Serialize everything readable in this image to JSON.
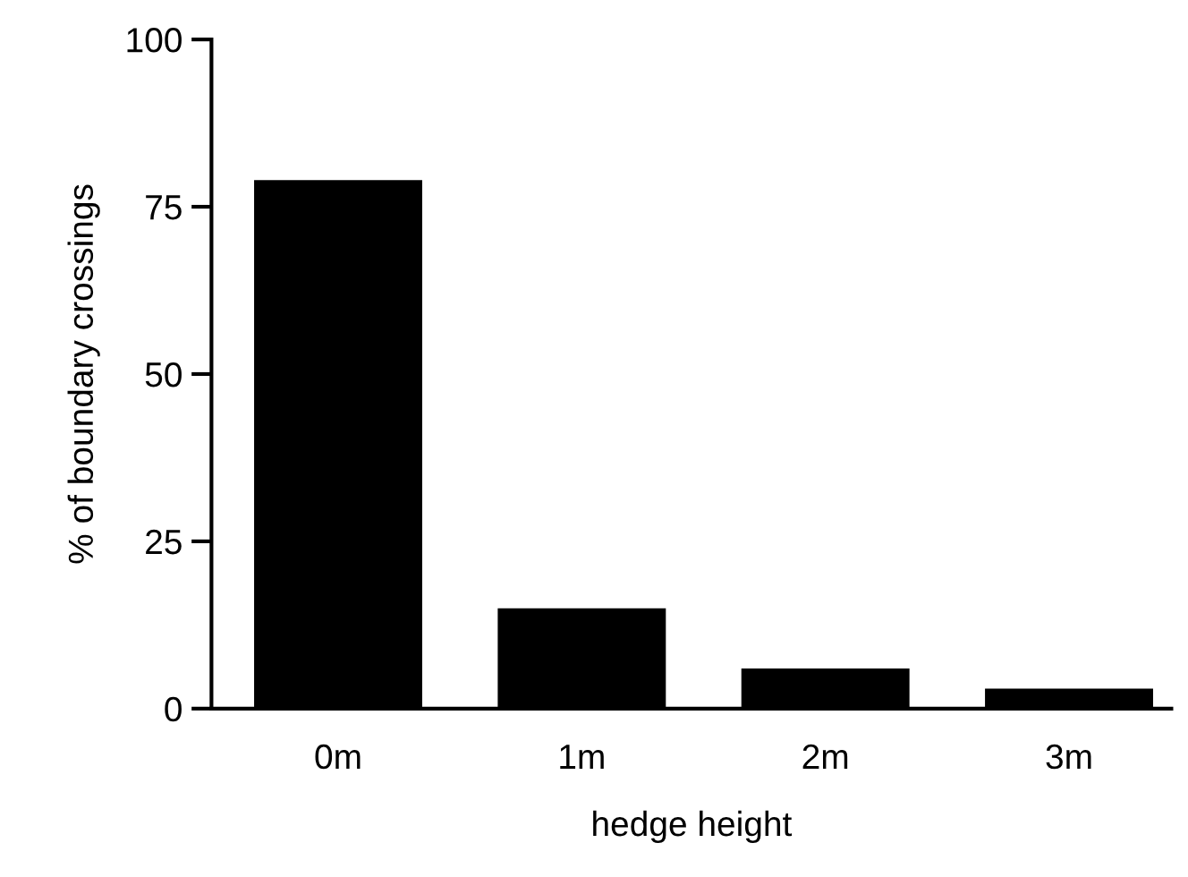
{
  "chart_data": {
    "type": "bar",
    "xlabel": "hedge height",
    "ylabel": "% of boundary crossings",
    "categories": [
      "0m",
      "1m",
      "2m",
      "3m"
    ],
    "values": [
      79,
      15,
      6,
      3
    ],
    "color": "#000000",
    "ylim": [
      0,
      100
    ],
    "yticks": [
      0,
      25,
      50,
      75,
      100
    ],
    "grid": false,
    "legend": false
  }
}
